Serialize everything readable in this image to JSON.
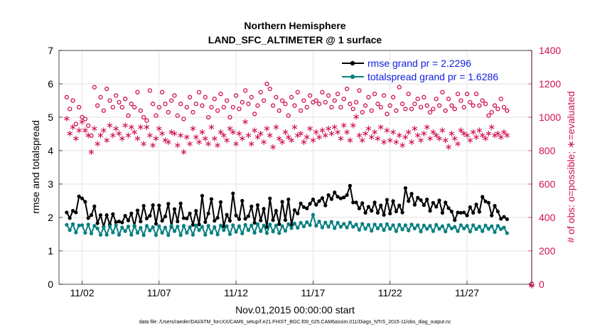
{
  "chart_data": {
    "type": "line",
    "title": [
      "Northern Hemisphere",
      "LAND_SFC_ALTIMETER @ 1 surface"
    ],
    "xlabel": "Nov.01,2015 00:00:00 start",
    "ylabel_left": "rmse and totalspread",
    "ylabel_right": "# of obs: o=possible; ∗=evaluated",
    "xlim": [
      0.5,
      31.2
    ],
    "ylim_left": [
      0,
      7
    ],
    "ylim_right": [
      0,
      1400
    ],
    "x_ticks": [
      2,
      7,
      12,
      17,
      22,
      27
    ],
    "x_tick_labels": [
      "11/02",
      "11/07",
      "11/12",
      "11/17",
      "11/22",
      "11/27"
    ],
    "y_ticks_left": [
      0,
      1,
      2,
      3,
      4,
      5,
      6,
      7
    ],
    "y_ticks_right": [
      0,
      200,
      400,
      600,
      800,
      1000,
      1200,
      1400
    ],
    "grid": true,
    "legend_position": "top-right",
    "series": [
      {
        "name": "rmse grand pr = 2.2296",
        "axis": "left",
        "color": "#000000",
        "marker": "dot",
        "values": [
          2.15,
          1.98,
          2.2,
          2.15,
          2.63,
          2.57,
          2.47,
          1.98,
          2.07,
          2.33,
          1.83,
          2.07,
          1.72,
          2.07,
          1.79,
          2.1,
          1.86,
          1.88,
          1.85,
          2.05,
          1.91,
          2.12,
          1.74,
          2.21,
          1.88,
          2.35,
          1.97,
          2.05,
          2.37,
          1.81,
          2.36,
          1.9,
          2.03,
          2.41,
          1.72,
          2.25,
          1.88,
          2.42,
          1.98,
          1.97,
          2.12,
          1.78,
          2.2,
          1.79,
          2.65,
          1.86,
          2.12,
          2.55,
          1.9,
          1.99,
          2.46,
          1.74,
          2.08,
          1.9,
          2.72,
          2.06,
          1.95,
          2.5,
          1.96,
          2.04,
          2.33,
          1.84,
          2.37,
          1.91,
          2.26,
          1.71,
          2.57,
          1.92,
          2.2,
          1.8,
          2.47,
          1.92,
          2.54,
          1.78,
          2.22,
          2.12,
          2.42,
          2.31,
          2.27,
          2.41,
          2.54,
          2.38,
          2.49,
          2.58,
          2.36,
          2.67,
          2.55,
          2.75,
          2.62,
          2.57,
          2.6,
          2.67,
          2.95,
          2.45,
          2.45,
          2.27,
          2.43,
          2.14,
          2.32,
          2.2,
          2.45,
          2.14,
          2.36,
          2.08,
          2.53,
          2.12,
          2.49,
          2.18,
          2.36,
          2.15,
          2.88,
          2.49,
          2.71,
          2.38,
          2.59,
          2.52,
          2.37,
          2.54,
          2.2,
          2.44,
          2.32,
          2.51,
          2.14,
          2.45,
          2.28,
          2.18,
          1.92,
          2.15,
          2.14,
          2.15,
          2.06,
          2.31,
          2.14,
          2.39,
          2.17,
          2.62,
          2.48,
          2.44,
          2.06,
          2.35,
          2.18,
          1.96,
          2.02,
          1.95
        ]
      },
      {
        "name": "totalspread grand pr = 1.6286",
        "axis": "left",
        "color": "#0a8080",
        "marker": "dot",
        "values": [
          1.78,
          1.62,
          1.8,
          1.55,
          1.76,
          1.77,
          1.54,
          1.79,
          1.52,
          1.75,
          1.67,
          1.48,
          1.71,
          1.48,
          1.74,
          1.55,
          1.77,
          1.48,
          1.7,
          1.59,
          1.73,
          1.48,
          1.76,
          1.54,
          1.69,
          1.47,
          1.75,
          1.61,
          1.71,
          1.47,
          1.74,
          1.54,
          1.7,
          1.47,
          1.75,
          1.59,
          1.73,
          1.47,
          1.75,
          1.54,
          1.71,
          1.48,
          1.76,
          1.62,
          1.72,
          1.48,
          1.75,
          1.54,
          1.71,
          1.49,
          1.76,
          1.62,
          1.74,
          1.5,
          1.77,
          1.57,
          1.74,
          1.52,
          1.78,
          1.62,
          1.76,
          1.54,
          1.8,
          1.59,
          1.76,
          1.53,
          1.79,
          1.58,
          1.76,
          1.53,
          1.74,
          1.6,
          1.8,
          1.68,
          1.82,
          1.69,
          1.84,
          1.73,
          1.86,
          1.77,
          2.08,
          1.75,
          1.88,
          1.7,
          1.85,
          1.72,
          1.87,
          1.68,
          1.84,
          1.72,
          1.81,
          1.7,
          1.85,
          1.72,
          1.79,
          1.63,
          1.81,
          1.66,
          1.78,
          1.6,
          1.79,
          1.67,
          1.78,
          1.62,
          1.8,
          1.66,
          1.77,
          1.59,
          1.78,
          1.64,
          1.77,
          1.61,
          1.79,
          1.67,
          1.77,
          1.58,
          1.76,
          1.66,
          1.75,
          1.59,
          1.78,
          1.66,
          1.74,
          1.58,
          1.77,
          1.67,
          1.72,
          1.59,
          1.77,
          1.67,
          1.75,
          1.58,
          1.77,
          1.65,
          1.73,
          1.59,
          1.76,
          1.66,
          1.74,
          1.56,
          1.75,
          1.65,
          1.7,
          1.53
        ]
      },
      {
        "name": "possible",
        "axis": "right",
        "color": "#d0104c",
        "marker": "circle",
        "values": [
          1120,
          1050,
          1100,
          960,
          1060,
          1000,
          990,
          950,
          890,
          1180,
          1070,
          1120,
          1040,
          1170,
          1100,
          1060,
          1130,
          1090,
          1060,
          1110,
          1010,
          1080,
          1060,
          1150,
          1040,
          1000,
          980,
          1160,
          1080,
          1010,
          1060,
          1150,
          1080,
          1030,
          1100,
          1130,
          1010,
          1080,
          990,
          1060,
          1120,
          1030,
          1080,
          1150,
          1070,
          1120,
          1000,
          1060,
          1110,
          1040,
          1140,
          1060,
          1100,
          1000,
          1060,
          1130,
          1050,
          1090,
          1160,
          1080,
          1120,
          1020,
          1070,
          1150,
          1100,
          1200,
          1170,
          1070,
          1120,
          1040,
          1100,
          1080,
          1010,
          1120,
          1070,
          1150,
          1040,
          1100,
          1060,
          1130,
          1090,
          1100,
          1080,
          1150,
          1090,
          1130,
          1060,
          1100,
          1140,
          1060,
          1110,
          1170,
          1080,
          1050,
          1090,
          1160,
          1030,
          1070,
          1120,
          1040,
          1140,
          1080,
          1060,
          1130,
          1020,
          1070,
          1120,
          1040,
          1180,
          1080,
          1050,
          1140,
          1050,
          1080,
          1110,
          1060,
          1120,
          1070,
          1030,
          1050,
          1110,
          1070,
          1150,
          1040,
          1110,
          1070,
          1050,
          1140,
          1100,
          1060,
          1140,
          1090,
          1070,
          1140,
          1070,
          1100,
          1080,
          1010,
          1030,
          1070,
          1050,
          1110,
          1060,
          1040
        ]
      },
      {
        "name": "evaluated",
        "axis": "right",
        "color": "#d0104c",
        "marker": "asterisk",
        "values": [
          1000,
          910,
          950,
          880,
          930,
          980,
          930,
          900,
          800,
          940,
          850,
          900,
          930,
          870,
          960,
          900,
          940,
          910,
          880,
          960,
          900,
          950,
          920,
          880,
          950,
          850,
          950,
          900,
          840,
          880,
          940,
          910,
          870,
          860,
          920,
          910,
          840,
          900,
          800,
          890,
          850,
          940,
          890,
          860,
          920,
          880,
          850,
          950,
          880,
          840,
          920,
          900,
          870,
          940,
          920,
          850,
          910,
          880,
          980,
          900,
          850,
          930,
          890,
          910,
          860,
          940,
          900,
          830,
          950,
          880,
          860,
          920,
          890,
          870,
          950,
          900,
          910,
          860,
          890,
          940,
          870,
          920,
          890,
          930,
          900,
          940,
          910,
          950,
          920,
          880,
          960,
          920,
          870,
          960,
          1010,
          900,
          870,
          910,
          940,
          890,
          920,
          880,
          950,
          860,
          930,
          870,
          920,
          860,
          900,
          840,
          890,
          920,
          860,
          940,
          900,
          870,
          910,
          950,
          880,
          920,
          900,
          880,
          930,
          870,
          830,
          910,
          880,
          850,
          930,
          910,
          900,
          870,
          920,
          890,
          930,
          900,
          880,
          910,
          950,
          900,
          910,
          890,
          920,
          900
        ]
      }
    ]
  },
  "footer": "data file: /Users/raeder/DAI/ATM_forcXX/CAM6_setup/f.e21.FHIST_BGC.f09_025.CAM6assim.011/Diags_NTrS_2015-11/obs_diag_output.nc"
}
